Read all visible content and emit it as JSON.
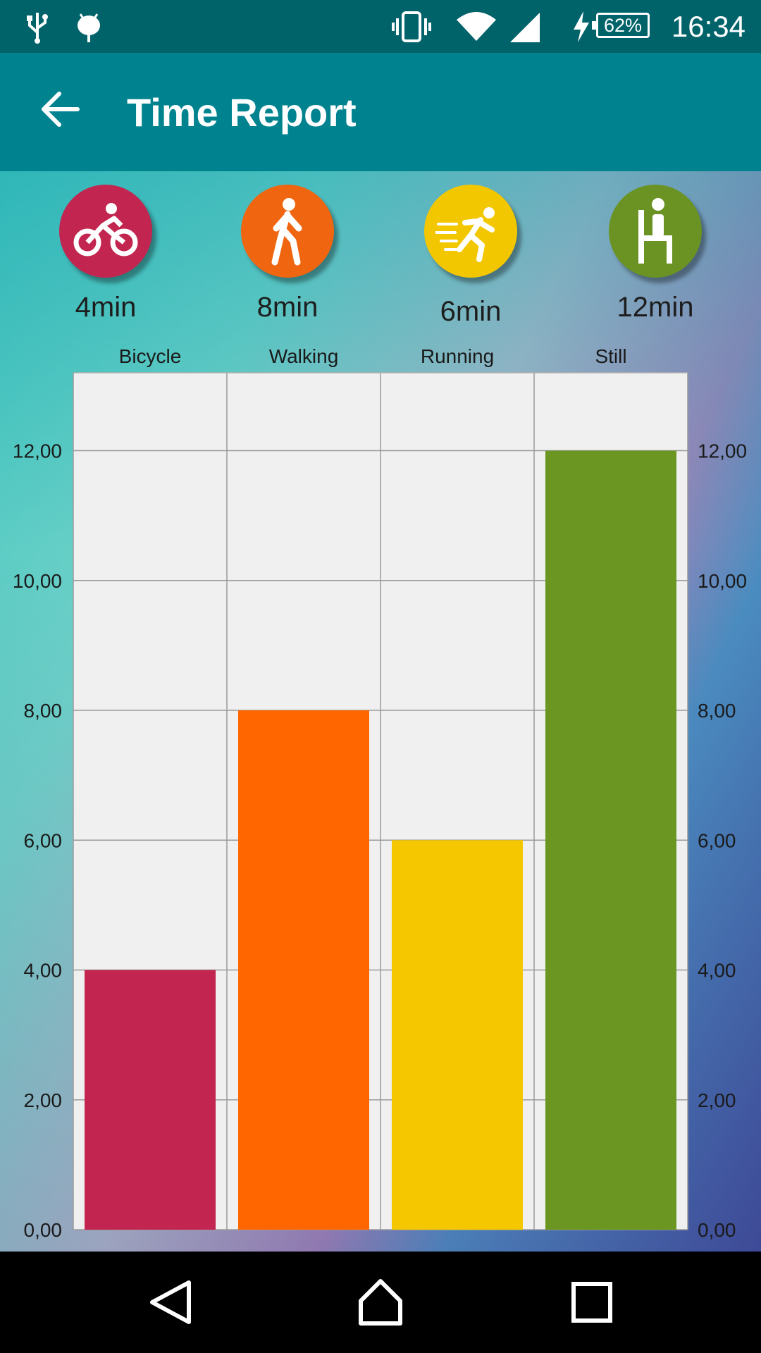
{
  "status_bar": {
    "time": "16:34",
    "battery": "62%",
    "icons": [
      "usb-icon",
      "android-debug-icon",
      "vibrate-icon",
      "wifi-icon",
      "cell-signal-icon",
      "charging-icon"
    ]
  },
  "app_bar": {
    "title": "Time Report",
    "back_icon": "arrow-left-icon"
  },
  "activities": [
    {
      "key": "bicycle",
      "minutes_label": "4min",
      "icon": "bicycle-icon",
      "color": "#c2254f"
    },
    {
      "key": "walking",
      "minutes_label": "8min",
      "icon": "walking-icon",
      "color": "#f06510"
    },
    {
      "key": "running",
      "minutes_label": "6min",
      "icon": "running-icon",
      "color": "#f3c700"
    },
    {
      "key": "still",
      "minutes_label": "12min",
      "icon": "sitting-icon",
      "color": "#6a9324"
    }
  ],
  "chart_data": {
    "type": "bar",
    "categories": [
      "Bicycle",
      "Walking",
      "Running",
      "Still"
    ],
    "values": [
      4,
      8,
      6,
      12
    ],
    "colors": [
      "#c2254f",
      "#ff6600",
      "#f4c700",
      "#6b9622"
    ],
    "ylim": [
      0,
      13.2
    ],
    "yticks": [
      0,
      2,
      4,
      6,
      8,
      10,
      12
    ],
    "ytick_labels": [
      "0,00",
      "2,00",
      "4,00",
      "6,00",
      "8,00",
      "10,00",
      "12,00"
    ],
    "y_axis_both_sides": true,
    "grid": true
  },
  "nav_bar": {
    "icons": [
      "back-triangle-icon",
      "home-icon",
      "recents-icon"
    ]
  }
}
